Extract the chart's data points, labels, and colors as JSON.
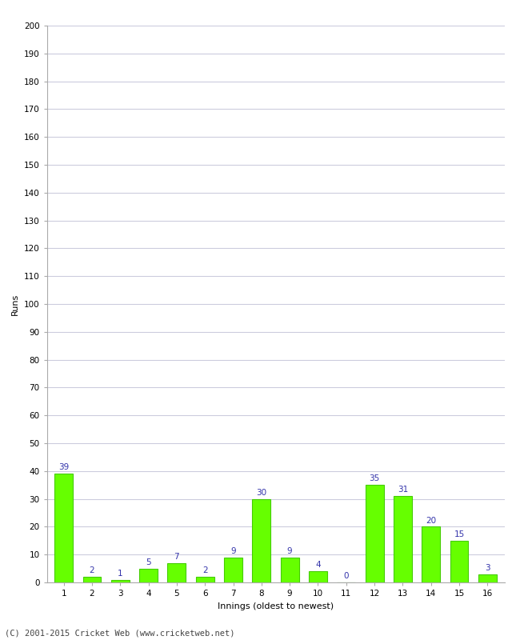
{
  "xlabel": "Innings (oldest to newest)",
  "ylabel": "Runs",
  "categories": [
    1,
    2,
    3,
    4,
    5,
    6,
    7,
    8,
    9,
    10,
    11,
    12,
    13,
    14,
    15,
    16
  ],
  "values": [
    39,
    2,
    1,
    5,
    7,
    2,
    9,
    30,
    9,
    4,
    0,
    35,
    31,
    20,
    15,
    3
  ],
  "bar_color": "#66ff00",
  "bar_edge_color": "#44cc00",
  "label_color": "#3333aa",
  "ylim": [
    0,
    200
  ],
  "yticks": [
    0,
    10,
    20,
    30,
    40,
    50,
    60,
    70,
    80,
    90,
    100,
    110,
    120,
    130,
    140,
    150,
    160,
    170,
    180,
    190,
    200
  ],
  "background_color": "#ffffff",
  "plot_bg_color": "#ffffff",
  "grid_color": "#ccccdd",
  "footer": "(C) 2001-2015 Cricket Web (www.cricketweb.net)",
  "label_fontsize": 7.5,
  "axis_label_fontsize": 8,
  "tick_fontsize": 7.5,
  "footer_fontsize": 7.5
}
